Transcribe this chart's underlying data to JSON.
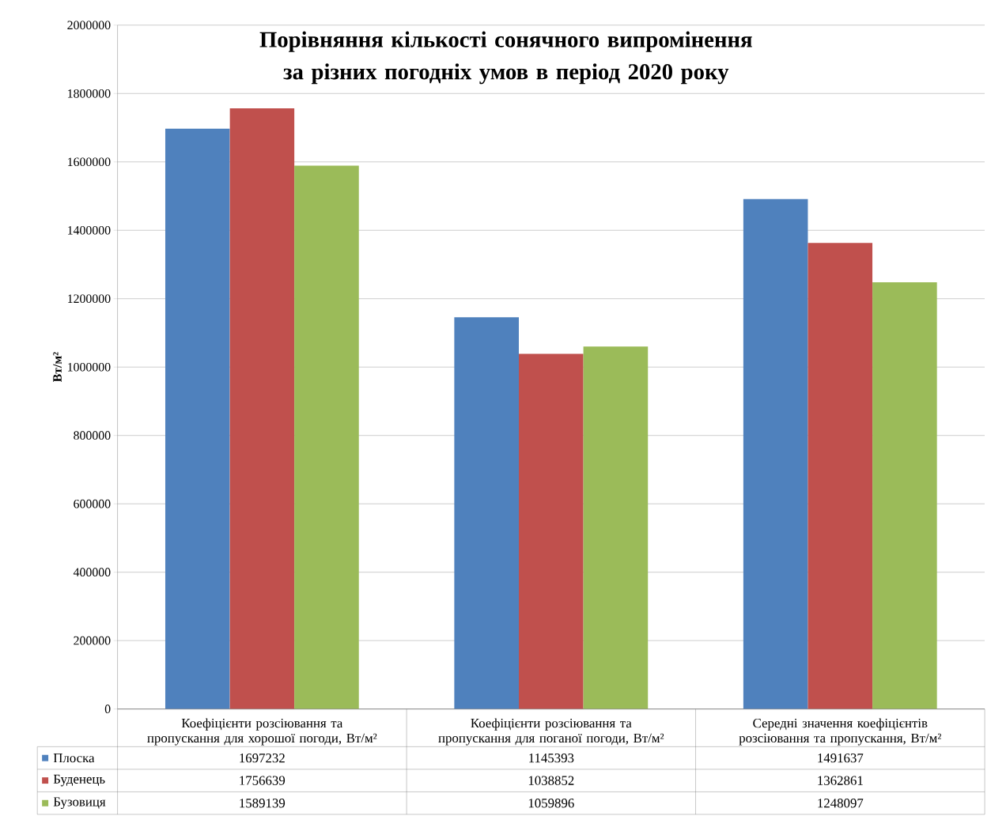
{
  "chart_data": {
    "type": "bar",
    "title": "Порівняння кількості сонячного випромінення за різних погодніх умов в період 2020 року",
    "ylabel": "Вт/м²",
    "categories": [
      "Коефіцієнти розсіювання та пропускання для хорошої погоди, Вт/м²",
      "Коефіцієнти розсіювання та пропускання для поганої погоди, Вт/м²",
      "Середні значення коефіцієнтів розсіювання та пропускання, Вт/м²"
    ],
    "series": [
      {
        "name": "Плоска",
        "color": "#4f81bd",
        "values": [
          1697232,
          1145393,
          1491637
        ]
      },
      {
        "name": "Буденець",
        "color": "#c0504d",
        "values": [
          1756639,
          1038852,
          1362861
        ]
      },
      {
        "name": "Бузовиця",
        "color": "#9bbb59",
        "values": [
          1589139,
          1059896,
          1248097
        ]
      }
    ],
    "ylim": [
      0,
      2000000
    ],
    "yticks": [
      0,
      200000,
      400000,
      600000,
      800000,
      1000000,
      1200000,
      1400000,
      1600000,
      1800000,
      2000000
    ],
    "grid": "y",
    "legend": "bottom",
    "data_labels": true
  }
}
